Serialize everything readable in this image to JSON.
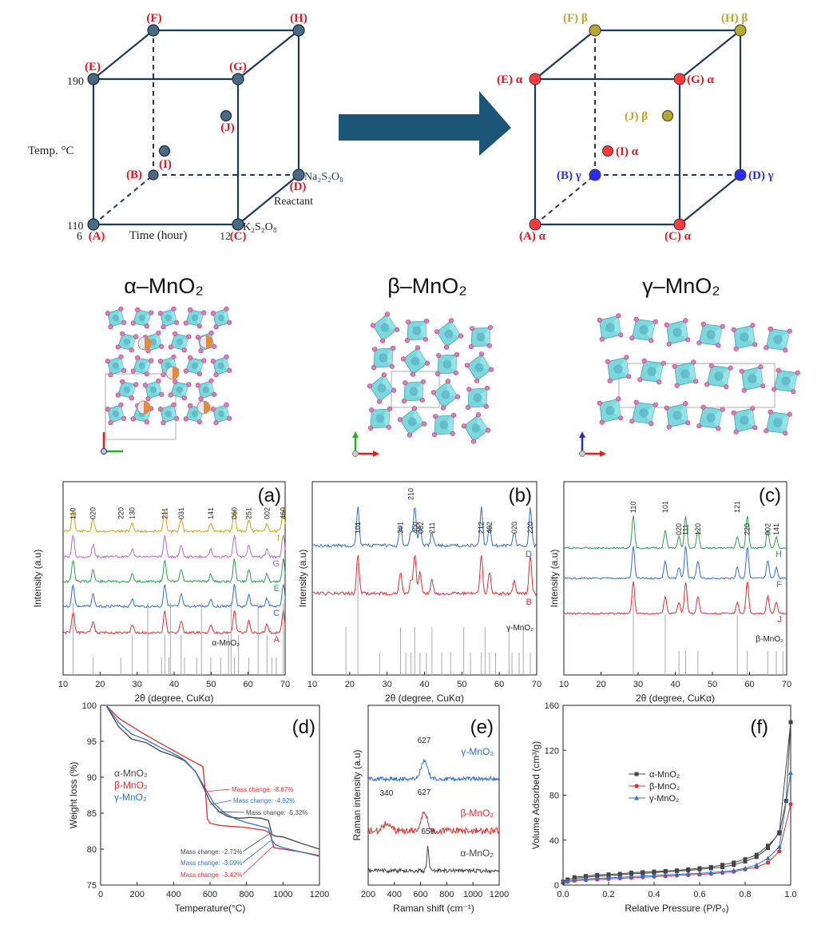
{
  "cubes": {
    "left": {
      "vertex_labels": {
        "A": "(A)",
        "B": "(B)",
        "C": "(C)",
        "D": "(D)",
        "E": "(E)",
        "F": "(F)",
        "G": "(G)",
        "H": "(H)",
        "I": "(I)",
        "J": "(J)"
      },
      "axis_texts": {
        "t190": "190",
        "t110": "110",
        "t6": "6",
        "t12": "12",
        "temp": "Temp. °C",
        "time": "Time (hour)",
        "reactant": "Reactant",
        "na": "Na₂S₂O₈",
        "k": "K₂S₂O₈"
      }
    },
    "right": {
      "labels": {
        "A": "(A) α",
        "B": "(B) γ",
        "C": "(C) α",
        "D": "(D) γ",
        "E": "(E) α",
        "F": "(F) β",
        "G": "(G) α",
        "H": "(H) β",
        "I": "(I) α",
        "J": "(J) β"
      }
    },
    "colors": {
      "label_red": "#e8141e",
      "node_dark": "#4a6a85",
      "alpha": "#ff3b3b",
      "beta": "#b8a830",
      "gamma": "#2a2aff",
      "edge": "#1c3a5c",
      "arrow": "#1a5577"
    }
  },
  "structures": {
    "alpha": "α–MnO₂",
    "beta": "β–MnO₂",
    "gamma": "γ–MnO₂"
  },
  "panels": {
    "a": {
      "label": "(a)"
    },
    "b": {
      "label": "(b)"
    },
    "c": {
      "label": "(c)"
    },
    "d": {
      "label": "(d)"
    },
    "e": {
      "label": "(e)"
    },
    "f": {
      "label": "(f)"
    }
  },
  "chart_data": [
    {
      "id": "a",
      "type": "line",
      "xlabel": "2θ (degree, CuKα)",
      "ylabel": "Intensity (a.u)",
      "xlim": [
        10,
        70
      ],
      "xticks": [
        10,
        20,
        30,
        40,
        50,
        60,
        70
      ],
      "series": [
        {
          "name": "I",
          "color": "#d4a017"
        },
        {
          "name": "G",
          "color": "#b36bd6"
        },
        {
          "name": "E",
          "color": "#2e9e4f"
        },
        {
          "name": "C",
          "color": "#2f6fd0"
        },
        {
          "name": "A",
          "color": "#e03030"
        }
      ],
      "peaks": [
        12.7,
        18.1,
        28.7,
        37.5,
        41.9,
        49.9,
        56.3,
        60.2,
        65.1,
        69.5
      ],
      "peak_labels": [
        {
          "x": 12.7,
          "text": "110"
        },
        {
          "x": 18.1,
          "text": "020"
        },
        {
          "x": 25.6,
          "text": "220"
        },
        {
          "x": 28.7,
          "text": "130"
        },
        {
          "x": 37.5,
          "text": "211"
        },
        {
          "x": 41.9,
          "text": "031"
        },
        {
          "x": 49.9,
          "text": "141"
        },
        {
          "x": 56.3,
          "text": "060"
        },
        {
          "x": 60.2,
          "text": "251"
        },
        {
          "x": 65.1,
          "text": "002"
        },
        {
          "x": 69.5,
          "text": "460"
        }
      ],
      "reference_label": "α-MnO₂",
      "reference_lines": [
        12.7,
        18.1,
        25.6,
        28.7,
        32.9,
        36.6,
        37.5,
        38.6,
        39.0,
        41.9,
        42.8,
        46.1,
        47.4,
        49.9,
        52.6,
        54.7,
        55.4,
        56.3,
        57.4,
        60.2,
        62.7,
        65.1,
        66.4,
        67.6,
        69.5
      ]
    },
    {
      "id": "b",
      "type": "line",
      "xlabel": "2θ (degree, CuKα)",
      "ylabel": "Intensity (a.u)",
      "xlim": [
        10,
        70
      ],
      "xticks": [
        10,
        20,
        30,
        40,
        50,
        60,
        70
      ],
      "series": [
        {
          "name": "D",
          "color": "#2f6fd0"
        },
        {
          "name": "B",
          "color": "#e03030"
        }
      ],
      "peaks": [
        22.2,
        33.6,
        36.4,
        37.4,
        38.8,
        42.0,
        55.2,
        57.4,
        64.0,
        68.3
      ],
      "peak_labels": [
        {
          "x": 22.2,
          "text": "101"
        },
        {
          "x": 33.6,
          "text": "301"
        },
        {
          "x": 36.4,
          "text": "210"
        },
        {
          "x": 37.6,
          "text": "400"
        },
        {
          "x": 39.0,
          "text": "002"
        },
        {
          "x": 42.0,
          "text": "211"
        },
        {
          "x": 55.2,
          "text": "212"
        },
        {
          "x": 57.4,
          "text": "402"
        },
        {
          "x": 64.0,
          "text": "020"
        },
        {
          "x": 68.3,
          "text": "220"
        }
      ],
      "reference_label": "γ-MnO₂",
      "reference_lines": [
        19.0,
        22.2,
        28.0,
        33.6,
        35.0,
        36.4,
        37.4,
        38.8,
        40.5,
        42.0,
        44.6,
        47.0,
        50.5,
        52.3,
        55.2,
        56.2,
        57.4,
        59.0,
        62.6,
        63.4,
        65.3,
        66.4,
        68.3
      ]
    },
    {
      "id": "c",
      "type": "line",
      "xlabel": "2θ (degree, CuKα)",
      "ylabel": "Intensity (a.u)",
      "xlim": [
        10,
        70
      ],
      "xticks": [
        10,
        20,
        30,
        40,
        50,
        60,
        70
      ],
      "series": [
        {
          "name": "H",
          "color": "#2e9e4f"
        },
        {
          "name": "F",
          "color": "#2f6fd0"
        },
        {
          "name": "J",
          "color": "#e03030"
        }
      ],
      "peaks": [
        28.7,
        37.3,
        41.0,
        42.8,
        46.1,
        56.7,
        59.4,
        64.9,
        67.2
      ],
      "peak_labels": [
        {
          "x": 28.7,
          "text": "110"
        },
        {
          "x": 37.3,
          "text": "101"
        },
        {
          "x": 41.0,
          "text": "020"
        },
        {
          "x": 42.8,
          "text": "111"
        },
        {
          "x": 46.1,
          "text": "120"
        },
        {
          "x": 56.7,
          "text": "121"
        },
        {
          "x": 59.4,
          "text": "220"
        },
        {
          "x": 64.9,
          "text": "002"
        },
        {
          "x": 67.2,
          "text": "141"
        }
      ],
      "reference_label": "β-MnO₂",
      "reference_lines": [
        28.7,
        37.3,
        41.0,
        42.8,
        46.1,
        56.7,
        59.4,
        64.9,
        67.2,
        69.0
      ]
    },
    {
      "id": "d",
      "type": "line",
      "xlabel": "Temperature(°C)",
      "ylabel": "Weight loss (%)",
      "xlim": [
        0,
        1200
      ],
      "ylim": [
        75,
        100
      ],
      "xticks": [
        0,
        200,
        400,
        600,
        800,
        1000,
        1200
      ],
      "yticks": [
        75,
        80,
        85,
        90,
        95,
        100
      ],
      "series": [
        {
          "name": "α-MnO₂",
          "color": "#444444",
          "x": [
            30,
            100,
            170,
            250,
            330,
            400,
            460,
            520,
            560,
            600,
            650,
            700,
            760,
            820,
            880,
            920,
            940,
            960,
            1000,
            1100,
            1200
          ],
          "y": [
            100,
            97.0,
            95.3,
            94.8,
            93.6,
            93.0,
            92.3,
            90.8,
            88.8,
            86.6,
            85.2,
            84.5,
            84.3,
            84.4,
            84.3,
            84.0,
            82.0,
            81.8,
            81.7,
            80.8,
            80.0
          ]
        },
        {
          "name": "β-MnO₂",
          "color": "#e03030",
          "x": [
            30,
            100,
            200,
            300,
            400,
            500,
            560,
            575,
            585,
            600,
            650,
            700,
            800,
            900,
            930,
            950,
            1000,
            1100,
            1200
          ],
          "y": [
            100,
            98.2,
            96.6,
            95.1,
            93.7,
            92.3,
            91.5,
            88.0,
            84.2,
            83.6,
            83.3,
            83.2,
            83.0,
            82.6,
            82.2,
            80.2,
            80.0,
            79.6,
            79.1
          ]
        },
        {
          "name": "γ-MnO₂",
          "color": "#2f6fd0",
          "x": [
            30,
            100,
            170,
            250,
            330,
            400,
            460,
            520,
            570,
            620,
            680,
            740,
            800,
            860,
            920,
            940,
            960,
            1000,
            1100,
            1200
          ],
          "y": [
            100,
            97.6,
            96.0,
            95.2,
            94.1,
            93.3,
            92.4,
            90.8,
            88.6,
            86.4,
            85.0,
            84.2,
            83.7,
            83.3,
            82.9,
            81.2,
            80.6,
            80.2,
            79.6,
            79.0
          ]
        }
      ],
      "annotations": [
        {
          "text": "Mass change: -8.67%",
          "color": "#e03030"
        },
        {
          "text": "Mass change: -4.92%",
          "color": "#2f6fd0"
        },
        {
          "text": "Mass change: -5.32%",
          "color": "#444444"
        },
        {
          "text": "Mass change: -2.71%",
          "color": "#444444"
        },
        {
          "text": "Mass change: -3.09%",
          "color": "#2f6fd0"
        },
        {
          "text": "Mass change: -3.42%",
          "color": "#e03030"
        }
      ],
      "legend": "left"
    },
    {
      "id": "e",
      "type": "line",
      "xlabel": "Raman shift (cm⁻¹)",
      "ylabel": "Raman intensity (a.u)",
      "xlim": [
        200,
        1200
      ],
      "xticks": [
        200,
        400,
        600,
        800,
        1000,
        1200
      ],
      "series": [
        {
          "name": "γ-MnO₂",
          "color": "#2f6fd0",
          "peaks": [
            627
          ]
        },
        {
          "name": "β-MnO₂",
          "color": "#e03030",
          "peaks": [
            340,
            627
          ]
        },
        {
          "name": "α-MnO₂",
          "color": "#444444",
          "peaks": [
            656
          ]
        }
      ],
      "peak_labels": [
        {
          "series": "γ-MnO₂",
          "x": 627,
          "text": "627"
        },
        {
          "series": "β-MnO₂",
          "x": 340,
          "text": "340"
        },
        {
          "series": "β-MnO₂",
          "x": 627,
          "text": "627"
        },
        {
          "series": "α-MnO₂",
          "x": 656,
          "text": "656"
        }
      ]
    },
    {
      "id": "f",
      "type": "line",
      "xlabel": "Relative Pressure (P/P₀)",
      "ylabel": "Volume Adsorbed (cm³/g)",
      "xlim": [
        0,
        1.0
      ],
      "ylim": [
        0,
        160
      ],
      "xticks": [
        0.0,
        0.2,
        0.4,
        0.6,
        0.8,
        1.0
      ],
      "yticks": [
        0,
        40,
        80,
        120,
        160
      ],
      "series": [
        {
          "name": "α-MnO₂",
          "color": "#444444",
          "marker": "square",
          "x": [
            0.0,
            0.02,
            0.05,
            0.1,
            0.15,
            0.2,
            0.25,
            0.3,
            0.35,
            0.4,
            0.45,
            0.5,
            0.55,
            0.6,
            0.65,
            0.7,
            0.75,
            0.8,
            0.85,
            0.9,
            0.95,
            1.0,
            0.98,
            0.95,
            0.9,
            0.85,
            0.8,
            0.75,
            0.7,
            0.65,
            0.6,
            0.55,
            0.5,
            0.45,
            0.4,
            0.35,
            0.3,
            0.25,
            0.2,
            0.15,
            0.1,
            0.05
          ],
          "y": [
            3,
            5,
            6,
            7,
            8,
            8.5,
            9,
            10,
            10.5,
            11,
            12,
            12.5,
            13,
            14,
            15,
            16,
            18,
            21,
            25,
            33,
            47,
            145,
            75,
            46,
            35,
            27,
            23,
            20,
            18,
            16,
            15,
            14,
            13,
            12.5,
            12,
            11.5,
            11,
            10,
            9.5,
            9,
            8,
            7
          ]
        },
        {
          "name": "β-MnO₂",
          "color": "#e03030",
          "marker": "circle",
          "x": [
            0.0,
            0.02,
            0.05,
            0.1,
            0.15,
            0.2,
            0.25,
            0.3,
            0.35,
            0.4,
            0.45,
            0.5,
            0.55,
            0.6,
            0.65,
            0.7,
            0.75,
            0.8,
            0.85,
            0.9,
            0.95,
            1.0
          ],
          "y": [
            2,
            3,
            4,
            4.5,
            5,
            5.5,
            6,
            6.5,
            7,
            7.5,
            8,
            8.5,
            9,
            9.5,
            10,
            11,
            12,
            14,
            16,
            20,
            30,
            72
          ]
        },
        {
          "name": "γ-MnO₂",
          "color": "#2f6fd0",
          "marker": "triangle",
          "x": [
            0.0,
            0.02,
            0.05,
            0.1,
            0.15,
            0.2,
            0.25,
            0.3,
            0.35,
            0.4,
            0.45,
            0.5,
            0.55,
            0.6,
            0.65,
            0.7,
            0.75,
            0.8,
            0.85,
            0.9,
            0.95,
            1.0
          ],
          "y": [
            2.5,
            3.5,
            4.5,
            5.5,
            6,
            6.5,
            7,
            7.5,
            8,
            8.5,
            9,
            9.5,
            10,
            10.5,
            11,
            12,
            13,
            15,
            18,
            24,
            34,
            100
          ]
        }
      ],
      "legend": "center-left"
    }
  ]
}
